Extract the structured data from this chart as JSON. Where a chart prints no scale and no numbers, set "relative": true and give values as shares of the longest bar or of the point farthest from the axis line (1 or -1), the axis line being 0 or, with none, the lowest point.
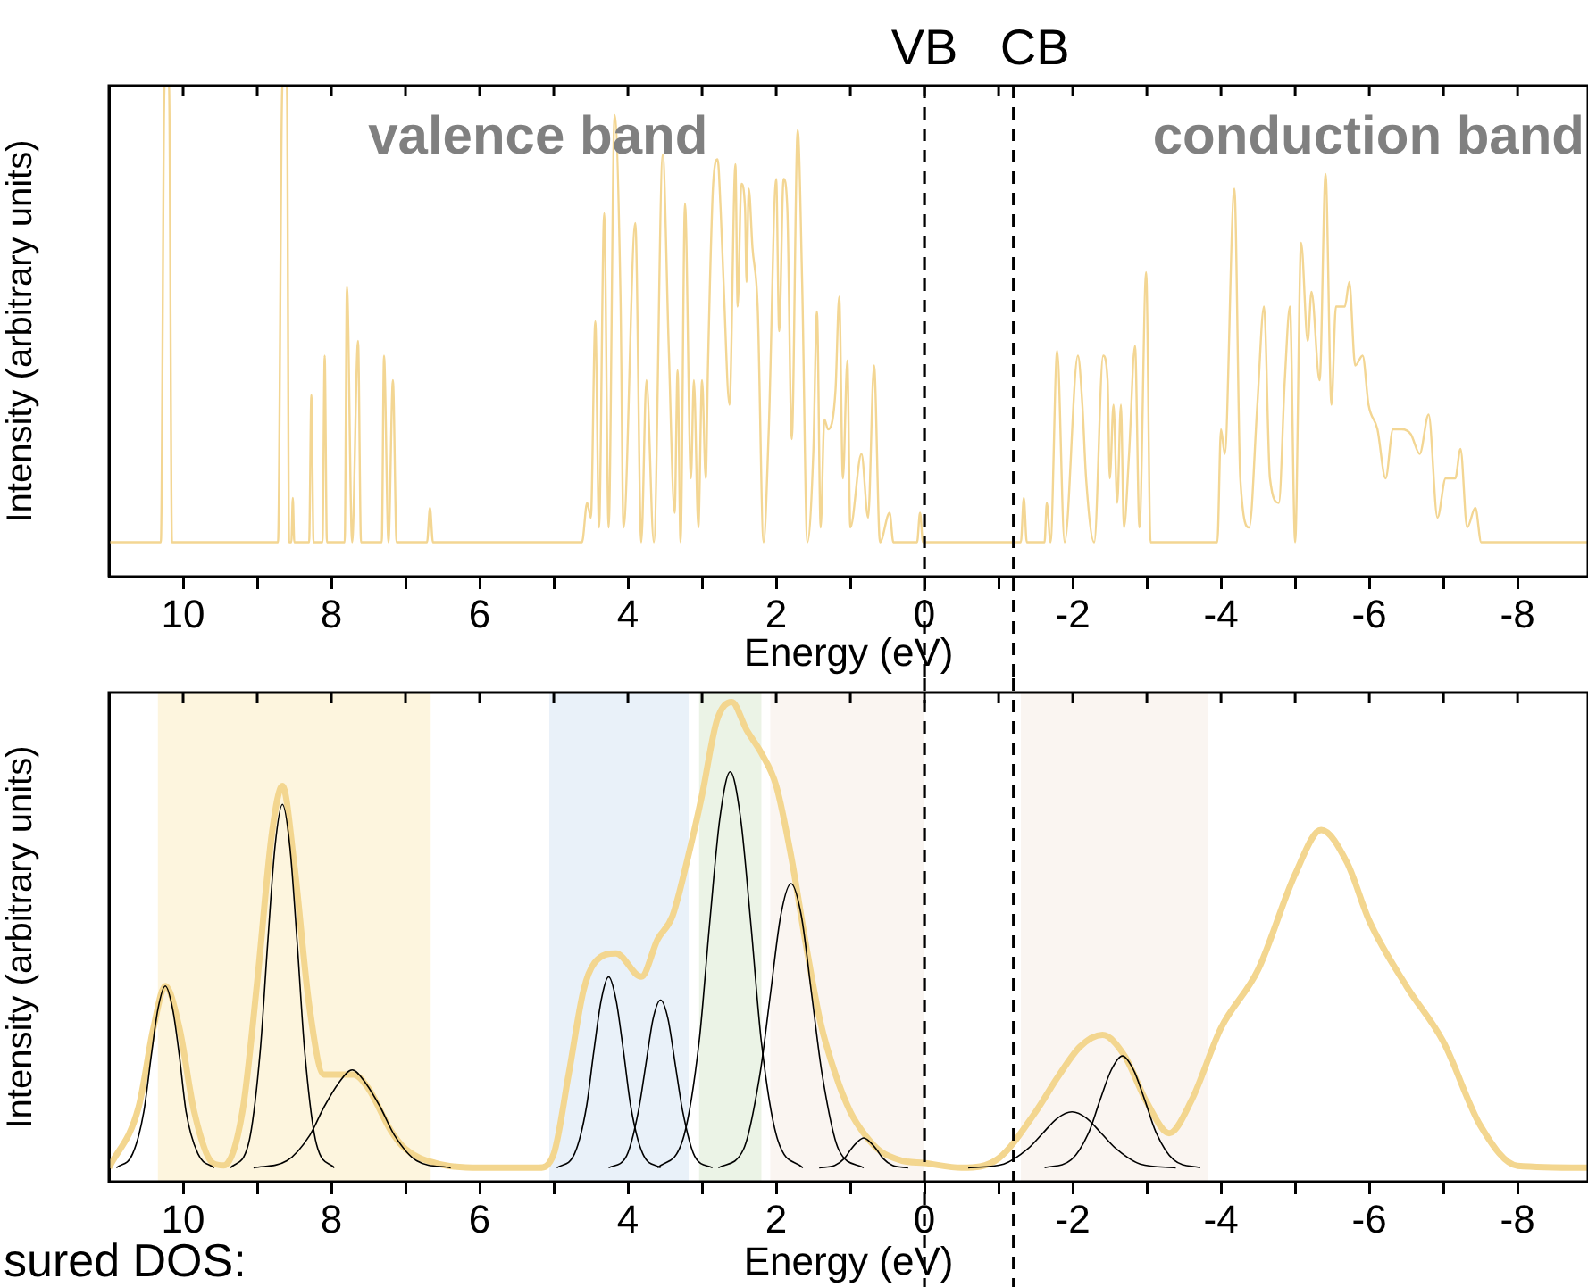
{
  "chart_data": [
    {
      "type": "line",
      "xlabel": "Energy (eV)",
      "ylabel": "Intensity (arbitrary units)",
      "relative": true,
      "xlim": [
        11,
        -8.95
      ],
      "xticks": [
        10,
        {
          "value": 9,
          "label": null
        },
        8,
        {
          "value": 7,
          "label": null
        },
        6,
        {
          "value": 5,
          "label": null
        },
        4,
        {
          "value": 3,
          "label": null
        },
        2,
        {
          "value": 1,
          "label": null
        },
        0,
        {
          "value": -1,
          "label": null
        },
        -2,
        {
          "value": -3,
          "label": null
        },
        -4,
        {
          "value": -5,
          "label": null
        },
        -6,
        {
          "value": -7,
          "label": null
        },
        -8
      ],
      "series": [
        {
          "color": "#f3d693",
          "x": [
            11,
            10.3,
            10.25,
            10.19,
            10.15,
            8.72,
            8.66,
            8.6,
            8.57,
            8.54,
            8.52,
            8.5,
            8.3,
            8.27,
            8.24,
            8.12,
            8.09,
            8.06,
            7.82,
            7.79,
            7.72,
            7.64,
            7.6,
            7.32,
            7.29,
            7.23,
            7.17,
            7.12,
            6.71,
            6.67,
            6.63,
            4.62,
            4.55,
            4.5,
            4.44,
            4.39,
            4.32,
            4.26,
            4.18,
            4.1,
            4.06,
            3.9,
            3.82,
            3.75,
            3.65,
            3.53,
            3.45,
            3.37,
            3.33,
            3.29,
            3.23,
            3.15,
            3.11,
            3.05,
            3.0,
            2.95,
            2.92,
            2.85,
            2.79,
            2.75,
            2.71,
            2.63,
            2.55,
            2.52,
            2.47,
            2.42,
            2.4,
            2.37,
            2.32,
            2.25,
            2.17,
            2.1,
            2.0,
            1.96,
            1.9,
            1.85,
            1.79,
            1.71,
            1.65,
            1.58,
            1.5,
            1.45,
            1.4,
            1.35,
            1.3,
            1.2,
            1.15,
            1.1,
            1.04,
            1.0,
            0.85,
            0.76,
            0.68,
            0.6,
            0.47,
            0.42,
            0.1,
            0.06,
            0.02,
            -1.3,
            -1.34,
            -1.38,
            -1.62,
            -1.65,
            -1.7,
            -1.79,
            -1.89,
            -2.07,
            -2.13,
            -2.18,
            -2.29,
            -2.41,
            -2.47,
            -2.5,
            -2.55,
            -2.6,
            -2.65,
            -2.69,
            -2.76,
            -2.84,
            -2.9,
            -2.99,
            -3.05,
            -3.95,
            -4.0,
            -4.05,
            -4.18,
            -4.26,
            -4.38,
            -4.49,
            -4.58,
            -4.66,
            -4.78,
            -4.86,
            -4.93,
            -5.0,
            -5.08,
            -5.17,
            -5.22,
            -5.33,
            -5.41,
            -5.49,
            -5.55,
            -5.67,
            -5.73,
            -5.81,
            -5.91,
            -5.99,
            -6.11,
            -6.22,
            -6.32,
            -6.44,
            -6.56,
            -6.68,
            -6.8,
            -6.92,
            -7.03,
            -7.16,
            -7.23,
            -7.32,
            -7.43,
            -7.51,
            -8.95
          ],
          "values": [
            0.07,
            0.07,
            1,
            1,
            0.07,
            0.07,
            1,
            1,
            0.07,
            0.07,
            0.16,
            0.07,
            0.07,
            0.37,
            0.07,
            0.07,
            0.45,
            0.07,
            0.07,
            0.59,
            0.07,
            0.48,
            0.07,
            0.07,
            0.45,
            0.07,
            0.4,
            0.07,
            0.07,
            0.14,
            0.07,
            0.07,
            0.15,
            0.12,
            0.52,
            0.1,
            0.74,
            0.1,
            0.94,
            0.57,
            0.1,
            0.72,
            0.07,
            0.4,
            0.07,
            0.86,
            0.47,
            0.13,
            0.42,
            0.07,
            0.76,
            0.2,
            0.4,
            0.1,
            0.4,
            0.2,
            0.43,
            0.8,
            0.85,
            0.75,
            0.6,
            0.35,
            0.84,
            0.55,
            0.8,
            0.75,
            0.6,
            0.79,
            0.67,
            0.55,
            0.07,
            0.3,
            0.81,
            0.5,
            0.81,
            0.75,
            0.28,
            0.91,
            0.6,
            0.07,
            0.25,
            0.54,
            0.1,
            0.32,
            0.3,
            0.38,
            0.57,
            0.2,
            0.44,
            0.1,
            0.25,
            0.12,
            0.43,
            0.07,
            0.13,
            0.07,
            0.07,
            0.13,
            0.07,
            0.07,
            0.16,
            0.07,
            0.07,
            0.15,
            0.07,
            0.46,
            0.07,
            0.45,
            0.35,
            0.2,
            0.07,
            0.45,
            0.4,
            0.2,
            0.35,
            0.15,
            0.35,
            0.1,
            0.25,
            0.47,
            0.1,
            0.62,
            0.07,
            0.07,
            0.3,
            0.25,
            0.79,
            0.2,
            0.1,
            0.35,
            0.55,
            0.2,
            0.15,
            0.4,
            0.55,
            0.07,
            0.68,
            0.48,
            0.58,
            0.4,
            0.82,
            0.35,
            0.55,
            0.55,
            0.6,
            0.43,
            0.45,
            0.35,
            0.3,
            0.2,
            0.3,
            0.3,
            0.29,
            0.25,
            0.33,
            0.12,
            0.2,
            0.2,
            0.26,
            0.1,
            0.14,
            0.07,
            0.07
          ]
        }
      ],
      "ref_lines": [
        {
          "axis": "x",
          "value": 0,
          "label": "VB",
          "line_style": "dashed",
          "color": "#000000"
        },
        {
          "axis": "x",
          "value": -1.2,
          "label": "CB",
          "line_style": "dashed",
          "color": "#000000"
        }
      ],
      "annotations": [
        "valence band",
        "conduction band"
      ]
    },
    {
      "type": "line",
      "xlabel": "Energy (eV)",
      "ylabel": "Intensity (arbitrary units)",
      "relative": true,
      "xlim": [
        11,
        -8.95
      ],
      "xticks": [
        10,
        {
          "value": 9,
          "label": null
        },
        8,
        {
          "value": 7,
          "label": null
        },
        6,
        {
          "value": 5,
          "label": null
        },
        4,
        {
          "value": 3,
          "label": null
        },
        2,
        {
          "value": 1,
          "label": null
        },
        0,
        {
          "value": -1,
          "label": null
        },
        -2,
        {
          "value": -3,
          "label": null
        },
        -4,
        {
          "value": -5,
          "label": null
        },
        -6,
        {
          "value": -7,
          "label": null
        },
        -8
      ],
      "series": [
        {
          "color": "#f3d68f",
          "x": [
            11,
            10.6,
            10.4,
            10.24,
            10.05,
            9.85,
            9.6,
            9.45,
            9.2,
            9.0,
            8.8,
            8.66,
            8.5,
            8.3,
            8.1,
            7.9,
            7.7,
            7.5,
            7.2,
            7.0,
            6.6,
            6.0,
            5.2,
            5.0,
            4.8,
            4.6,
            4.45,
            4.16,
            3.82,
            3.6,
            3.4,
            3.2,
            3.0,
            2.8,
            2.6,
            2.4,
            2.2,
            2.0,
            1.8,
            1.6,
            1.4,
            1.2,
            1.0,
            0.8,
            0.6,
            0.3,
            0,
            -0.5,
            -1.0,
            -1.5,
            -1.8,
            -2.1,
            -2.4,
            -2.7,
            -3.0,
            -3.3,
            -3.6,
            -4.0,
            -4.5,
            -5.0,
            -5.35,
            -5.7,
            -6.0,
            -6.5,
            -7.0,
            -7.5,
            -8.0,
            -8.95
          ],
          "values": [
            0,
            0.13,
            0.3,
            0.39,
            0.3,
            0.12,
            0.01,
            0.005,
            0.12,
            0.4,
            0.72,
            0.82,
            0.65,
            0.35,
            0.2,
            0.2,
            0.2,
            0.17,
            0.08,
            0.04,
            0.01,
            0,
            0,
            0.03,
            0.2,
            0.38,
            0.44,
            0.46,
            0.41,
            0.49,
            0.54,
            0.66,
            0.8,
            0.96,
            1,
            0.94,
            0.89,
            0.82,
            0.67,
            0.48,
            0.31,
            0.2,
            0.12,
            0.07,
            0.036,
            0.015,
            0.01,
            0,
            0.02,
            0.12,
            0.195,
            0.26,
            0.285,
            0.24,
            0.14,
            0.074,
            0.144,
            0.3,
            0.425,
            0.63,
            0.725,
            0.655,
            0.53,
            0.39,
            0.27,
            0.09,
            0.004,
            0
          ]
        },
        {
          "color": "#000000",
          "x": [
            10.9,
            10.68,
            10.53,
            10.43,
            10.34,
            10.24,
            10.14,
            10.05,
            9.96,
            9.8,
            9.58
          ],
          "values": [
            0,
            0.03,
            0.12,
            0.24,
            0.34,
            0.39,
            0.34,
            0.24,
            0.12,
            0.03,
            0
          ]
        },
        {
          "color": "#000000",
          "x": [
            9.36,
            9.12,
            8.96,
            8.86,
            8.76,
            8.66,
            8.56,
            8.46,
            8.36,
            8.2,
            7.96
          ],
          "values": [
            0,
            0.05,
            0.25,
            0.48,
            0.69,
            0.78,
            0.69,
            0.48,
            0.25,
            0.05,
            0
          ]
        },
        {
          "color": "#000000",
          "x": [
            9.05,
            8.6,
            8.29,
            8.1,
            7.91,
            7.72,
            7.53,
            7.34,
            7.15,
            6.85,
            6.39
          ],
          "values": [
            0,
            0.015,
            0.07,
            0.13,
            0.18,
            0.21,
            0.18,
            0.13,
            0.07,
            0.015,
            0
          ]
        },
        {
          "color": "#000000",
          "x": [
            4.96,
            4.72,
            4.56,
            4.46,
            4.36,
            4.26,
            4.16,
            4.06,
            3.96,
            3.8,
            3.56
          ],
          "values": [
            0,
            0.03,
            0.13,
            0.25,
            0.36,
            0.41,
            0.36,
            0.25,
            0.13,
            0.03,
            0
          ]
        },
        {
          "color": "#000000",
          "x": [
            4.26,
            4.02,
            3.86,
            3.76,
            3.66,
            3.56,
            3.46,
            3.36,
            3.26,
            3.1,
            2.86
          ],
          "values": [
            0,
            0.025,
            0.12,
            0.22,
            0.32,
            0.36,
            0.32,
            0.22,
            0.12,
            0.025,
            0
          ]
        },
        {
          "color": "#000000",
          "x": [
            3.6,
            3.26,
            3.04,
            2.9,
            2.76,
            2.62,
            2.48,
            2.34,
            2.2,
            1.98,
            1.64
          ],
          "values": [
            0,
            0.06,
            0.27,
            0.52,
            0.75,
            0.85,
            0.75,
            0.52,
            0.27,
            0.06,
            0
          ]
        },
        {
          "color": "#000000",
          "x": [
            2.78,
            2.44,
            2.22,
            2.08,
            1.94,
            1.8,
            1.66,
            1.52,
            1.38,
            1.16,
            0.82
          ],
          "values": [
            0,
            0.04,
            0.2,
            0.37,
            0.54,
            0.61,
            0.54,
            0.37,
            0.2,
            0.04,
            0
          ]
        },
        {
          "color": "#000000",
          "x": [
            1.42,
            1.21,
            1.08,
            0.99,
            0.9,
            0.82,
            0.74,
            0.65,
            0.56,
            0.43,
            0.22
          ],
          "values": [
            0,
            0.005,
            0.02,
            0.04,
            0.056,
            0.064,
            0.056,
            0.04,
            0.02,
            0.005,
            0
          ]
        },
        {
          "color": "#000000",
          "x": [
            -0.59,
            -1.07,
            -1.39,
            -1.59,
            -1.79,
            -1.99,
            -2.19,
            -2.39,
            -2.59,
            -2.91,
            -3.39
          ],
          "values": [
            0,
            0.008,
            0.04,
            0.073,
            0.106,
            0.12,
            0.106,
            0.073,
            0.04,
            0.008,
            0
          ]
        },
        {
          "color": "#000000",
          "x": [
            -1.62,
            -1.98,
            -2.22,
            -2.37,
            -2.52,
            -2.67,
            -2.82,
            -2.97,
            -3.12,
            -3.36,
            -3.72
          ],
          "values": [
            0,
            0.017,
            0.077,
            0.146,
            0.21,
            0.24,
            0.21,
            0.146,
            0.077,
            0.017,
            0
          ]
        }
      ],
      "bands": [
        {
          "axis": "x",
          "from": 10.34,
          "to": 6.66,
          "color": "#fdf5de"
        },
        {
          "axis": "x",
          "from": 5.06,
          "to": 3.18,
          "color": "#e9f1f9"
        },
        {
          "axis": "x",
          "from": 3.04,
          "to": 2.2,
          "color": "#ebf3e6"
        },
        {
          "axis": "x",
          "from": 2.08,
          "to": 0,
          "color": "#faf5f1"
        },
        {
          "axis": "x",
          "from": -1.3,
          "to": -3.82,
          "color": "#faf5f1"
        }
      ],
      "ref_lines": [
        {
          "axis": "x",
          "value": 0,
          "line_style": "dashed",
          "color": "#000000"
        },
        {
          "axis": "x",
          "value": -1.2,
          "line_style": "dashed",
          "color": "#000000"
        }
      ],
      "annotations": [
        "sured DOS:"
      ]
    }
  ]
}
